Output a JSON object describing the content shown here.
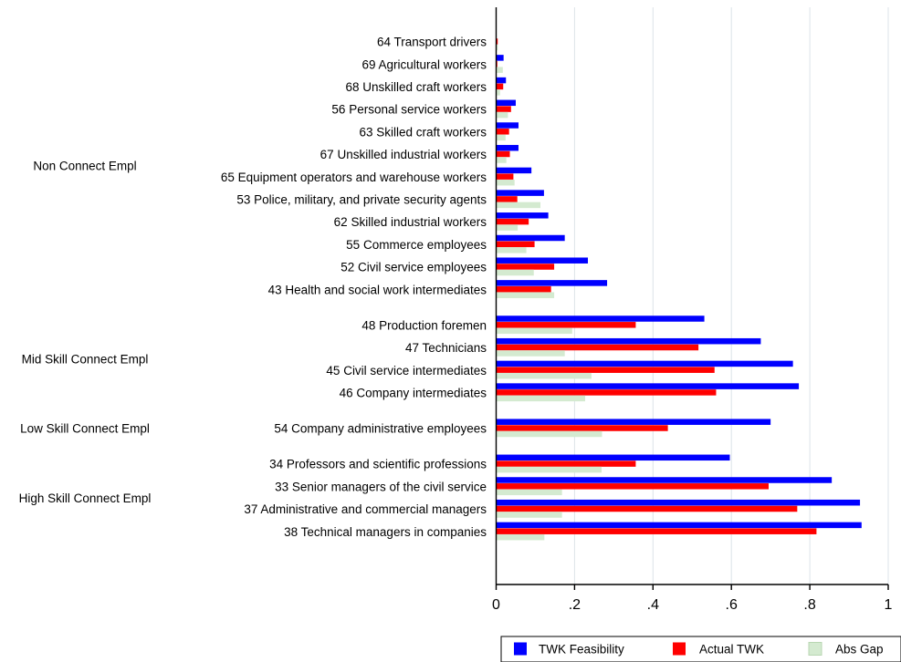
{
  "chart_data": {
    "type": "bar",
    "orientation": "horizontal",
    "xlim": [
      0,
      1
    ],
    "xticks": [
      {
        "value": 0,
        "label": "0"
      },
      {
        "value": 0.2,
        "label": ".2"
      },
      {
        "value": 0.4,
        "label": ".4"
      },
      {
        "value": 0.6,
        "label": ".6"
      },
      {
        "value": 0.8,
        "label": ".8"
      },
      {
        "value": 1,
        "label": "1"
      }
    ],
    "grid": true,
    "legend_position": "bottom-right",
    "series": [
      {
        "name": "TWK Feasibility",
        "color": "#0000ff"
      },
      {
        "name": "Actual TWK",
        "color": "#ff0000"
      },
      {
        "name": "Abs Gap",
        "color": "#d4ead0"
      }
    ],
    "groups": [
      {
        "name": "Non Connect Empl",
        "categories": [
          {
            "label": "64 Transport drivers",
            "values": [
              0.0,
              0.004,
              0.004
            ]
          },
          {
            "label": "69 Agricultural workers",
            "values": [
              0.019,
              0.003,
              0.017
            ]
          },
          {
            "label": "68 Unskilled craft workers",
            "values": [
              0.025,
              0.018,
              0.01
            ]
          },
          {
            "label": "56 Personal service workers",
            "values": [
              0.05,
              0.038,
              0.03
            ]
          },
          {
            "label": "63 Skilled craft workers",
            "values": [
              0.057,
              0.033,
              0.024
            ]
          },
          {
            "label": "67 Unskilled industrial workers",
            "values": [
              0.057,
              0.035,
              0.026
            ]
          },
          {
            "label": "65 Equipment operators and warehouse workers",
            "values": [
              0.09,
              0.044,
              0.047
            ]
          },
          {
            "label": "53 Police, military, and private security agents",
            "values": [
              0.122,
              0.054,
              0.113
            ]
          },
          {
            "label": "62 Skilled industrial workers",
            "values": [
              0.133,
              0.083,
              0.055
            ]
          },
          {
            "label": "55 Commerce employees",
            "values": [
              0.175,
              0.098,
              0.077
            ]
          },
          {
            "label": "52 Civil service employees",
            "values": [
              0.234,
              0.148,
              0.096
            ]
          },
          {
            "label": "43 Health and social work intermediates",
            "values": [
              0.283,
              0.14,
              0.148
            ]
          }
        ]
      },
      {
        "name": "Mid Skill Connect Empl",
        "categories": [
          {
            "label": "48 Production foremen",
            "values": [
              0.531,
              0.356,
              0.194
            ]
          },
          {
            "label": "47 Technicians",
            "values": [
              0.675,
              0.516,
              0.175
            ]
          },
          {
            "label": "45 Civil service intermediates",
            "values": [
              0.757,
              0.557,
              0.243
            ]
          },
          {
            "label": "46 Company intermediates",
            "values": [
              0.772,
              0.561,
              0.227
            ]
          }
        ]
      },
      {
        "name": "Low Skill Connect Empl",
        "categories": [
          {
            "label": "54 Company administrative employees",
            "values": [
              0.7,
              0.438,
              0.27
            ]
          }
        ]
      },
      {
        "name": "High Skill Connect Empl",
        "categories": [
          {
            "label": "34 Professors and scientific professions",
            "values": [
              0.596,
              0.356,
              0.269
            ]
          },
          {
            "label": "33 Senior managers of the civil service",
            "values": [
              0.856,
              0.695,
              0.168
            ]
          },
          {
            "label": "37 Administrative and commercial managers",
            "values": [
              0.928,
              0.768,
              0.168
            ]
          },
          {
            "label": "38 Technical managers in companies",
            "values": [
              0.932,
              0.817,
              0.123
            ]
          }
        ]
      }
    ]
  }
}
